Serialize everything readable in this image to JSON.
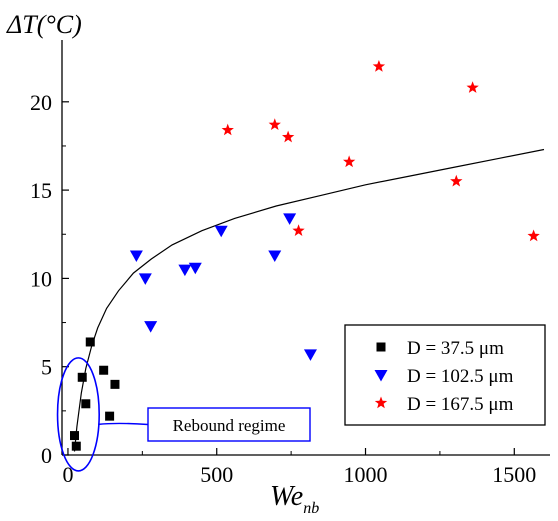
{
  "chart_data": {
    "type": "scatter",
    "title": "",
    "xlabel_main": "We",
    "xlabel_sub": "nb",
    "ylabel": "ΔT(°C)",
    "xlim": [
      -20,
      1620
    ],
    "ylim": [
      0,
      23.5
    ],
    "x_ticks": [
      0,
      500,
      1000,
      1500
    ],
    "y_ticks": [
      0,
      5,
      10,
      15,
      20
    ],
    "grid": false,
    "legend_position": "bottom-right",
    "series": [
      {
        "name": "D = 37.5 μm",
        "marker": "square",
        "color": "#000000",
        "points": [
          {
            "x": 22,
            "y": 1.1
          },
          {
            "x": 28,
            "y": 0.5
          },
          {
            "x": 48,
            "y": 4.4
          },
          {
            "x": 60,
            "y": 2.9
          },
          {
            "x": 75,
            "y": 6.4
          },
          {
            "x": 120,
            "y": 4.8
          },
          {
            "x": 140,
            "y": 2.2
          },
          {
            "x": 158,
            "y": 4.0
          }
        ]
      },
      {
        "name": "D = 102.5 μm",
        "marker": "triangle-down",
        "color": "#0000ff",
        "points": [
          {
            "x": 230,
            "y": 11.3
          },
          {
            "x": 260,
            "y": 10.0
          },
          {
            "x": 278,
            "y": 7.3
          },
          {
            "x": 393,
            "y": 10.5
          },
          {
            "x": 428,
            "y": 10.6
          },
          {
            "x": 515,
            "y": 12.7
          },
          {
            "x": 695,
            "y": 11.3
          },
          {
            "x": 745,
            "y": 13.4
          },
          {
            "x": 815,
            "y": 5.7
          }
        ]
      },
      {
        "name": "D = 167.5 μm",
        "marker": "star",
        "color": "#ff0000",
        "points": [
          {
            "x": 537,
            "y": 18.4
          },
          {
            "x": 695,
            "y": 18.7
          },
          {
            "x": 740,
            "y": 18.0
          },
          {
            "x": 775,
            "y": 12.7
          },
          {
            "x": 945,
            "y": 16.6
          },
          {
            "x": 1045,
            "y": 22.0
          },
          {
            "x": 1305,
            "y": 15.5
          },
          {
            "x": 1360,
            "y": 20.8
          },
          {
            "x": 1565,
            "y": 12.4
          }
        ]
      }
    ],
    "fit_curve": {
      "color": "#000000",
      "points": [
        {
          "x": 22,
          "y": 0.2
        },
        {
          "x": 30,
          "y": 1.6
        },
        {
          "x": 45,
          "y": 3.5
        },
        {
          "x": 60,
          "y": 4.9
        },
        {
          "x": 80,
          "y": 6.2
        },
        {
          "x": 100,
          "y": 7.2
        },
        {
          "x": 130,
          "y": 8.3
        },
        {
          "x": 170,
          "y": 9.3
        },
        {
          "x": 220,
          "y": 10.3
        },
        {
          "x": 280,
          "y": 11.1
        },
        {
          "x": 350,
          "y": 11.9
        },
        {
          "x": 450,
          "y": 12.7
        },
        {
          "x": 560,
          "y": 13.4
        },
        {
          "x": 700,
          "y": 14.1
        },
        {
          "x": 850,
          "y": 14.7
        },
        {
          "x": 1000,
          "y": 15.3
        },
        {
          "x": 1150,
          "y": 15.8
        },
        {
          "x": 1300,
          "y": 16.3
        },
        {
          "x": 1450,
          "y": 16.8
        },
        {
          "x": 1600,
          "y": 17.3
        }
      ]
    },
    "annotation": {
      "text": "Rebound regime",
      "ellipse_center": {
        "x": 35,
        "y": 2.3
      },
      "ellipse_radius": {
        "x": 70,
        "y": 3.2
      },
      "color": "#0000ff"
    }
  }
}
